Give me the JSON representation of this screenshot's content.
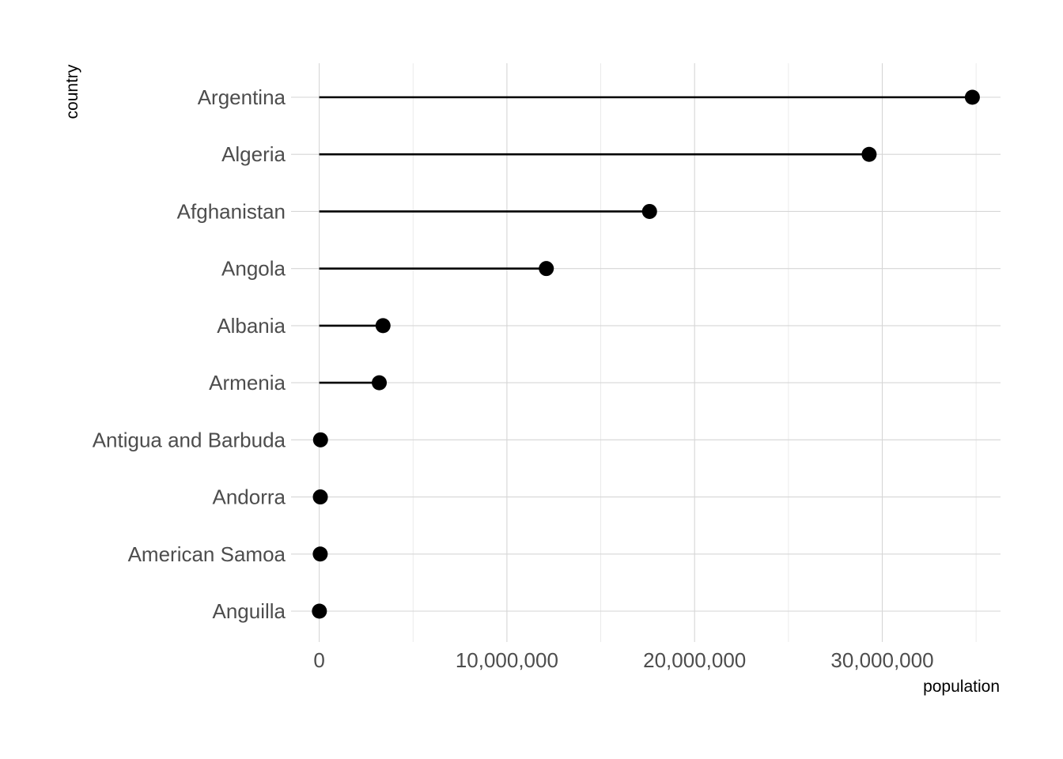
{
  "chart_data": {
    "type": "lollipop",
    "title": "",
    "xlabel": "population",
    "ylabel": "country",
    "xlim": [
      -1500000,
      36300000
    ],
    "x_ticks": [
      0,
      10000000,
      20000000,
      30000000
    ],
    "x_tick_labels": [
      "0",
      "10,000,000",
      "20,000,000",
      "30,000,000"
    ],
    "x_minor_ticks": [
      5000000,
      15000000,
      25000000,
      35000000
    ],
    "grid": true,
    "categories": [
      "Argentina",
      "Algeria",
      "Afghanistan",
      "Angola",
      "Albania",
      "Armenia",
      "Antigua and Barbuda",
      "Andorra",
      "American Samoa",
      "Anguilla"
    ],
    "values": [
      34800000,
      29300000,
      17600000,
      12100000,
      3400000,
      3200000,
      70000,
      60000,
      55000,
      10000
    ]
  }
}
